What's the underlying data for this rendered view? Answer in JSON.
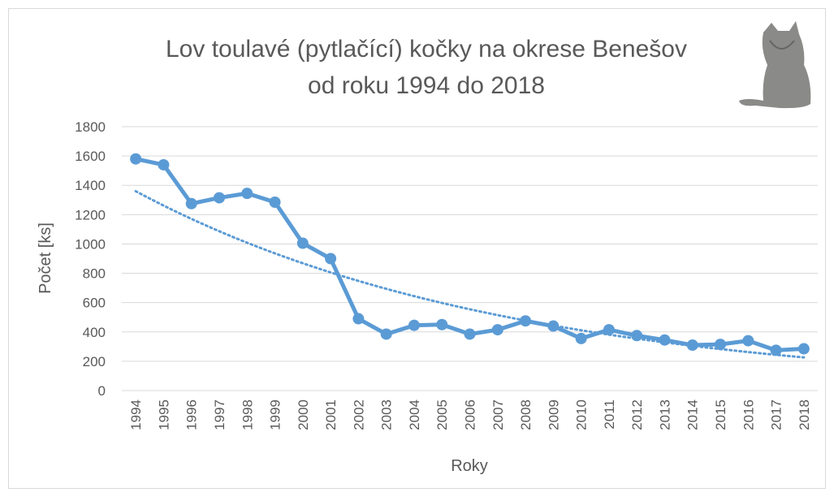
{
  "chart_data": {
    "type": "line",
    "title": [
      "Lov toulavé (pytlačící) kočky na okrese Benešov",
      "od roku 1994 do 2018"
    ],
    "x_label": "Roky",
    "y_label": "Počet [ks]",
    "categories": [
      "1994",
      "1995",
      "1996",
      "1997",
      "1998",
      "1999",
      "2000",
      "2001",
      "2002",
      "2003",
      "2004",
      "2005",
      "2006",
      "2007",
      "2008",
      "2009",
      "2010",
      "2011",
      "2012",
      "2013",
      "2014",
      "2015",
      "2016",
      "2017",
      "2018"
    ],
    "series": [
      {
        "color": "#5b9bd5",
        "values": [
          1580,
          1540,
          1275,
          1315,
          1345,
          1285,
          1005,
          900,
          490,
          385,
          445,
          450,
          385,
          415,
          475,
          440,
          355,
          415,
          375,
          345,
          310,
          315,
          340,
          275,
          285
        ]
      }
    ],
    "trendline": "exponential",
    "ylim": [
      0,
      1800
    ],
    "yticks": [
      0,
      200,
      400,
      600,
      800,
      1000,
      1200,
      1400,
      1600,
      1800
    ],
    "grid": true
  }
}
